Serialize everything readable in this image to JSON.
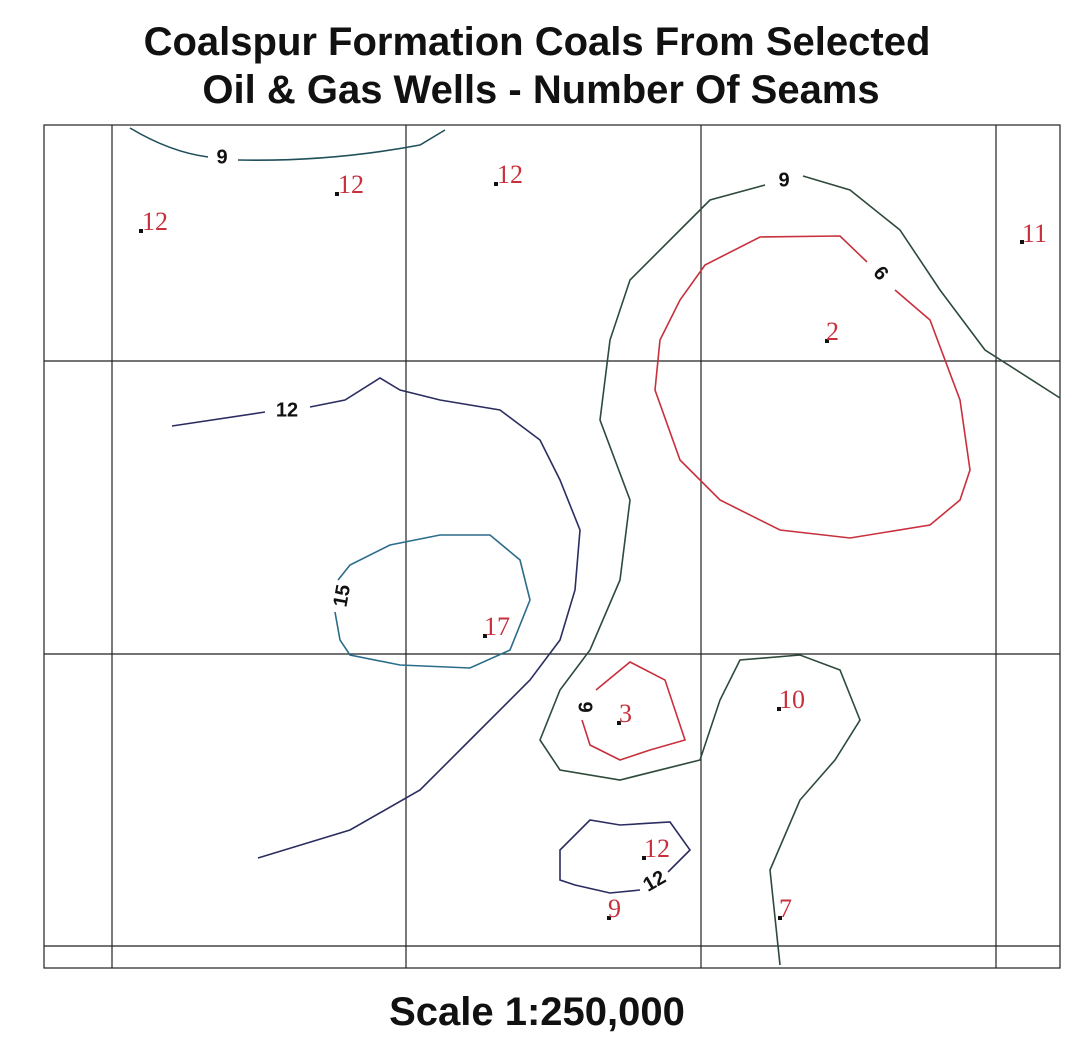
{
  "title": [
    "Coalspur Formation Coals From Selected",
    "Oil & Gas Wells - Number Of Seams"
  ],
  "wells": [
    12,
    12,
    12,
    11,
    2,
    17,
    3,
    10,
    12,
    9,
    7
  ],
  "contour_labels": [
    9,
    9,
    6,
    12,
    15,
    6,
    12
  ],
  "scale": "Scale 1:250,000"
}
